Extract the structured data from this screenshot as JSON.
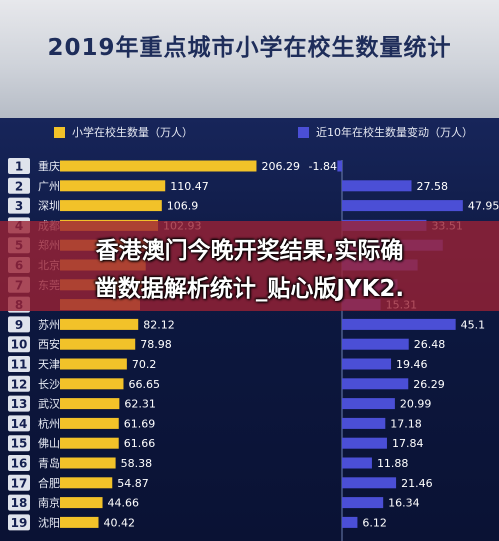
{
  "title": "2019年重点城市小学在校生数量统计",
  "overlay": {
    "line1": "香港澳门今晚开奖结果,实际确",
    "line2": "凿数据解析统计_贴心版JYK2."
  },
  "chart_data": {
    "type": "bar",
    "ranks": [
      1,
      2,
      3,
      4,
      5,
      6,
      7,
      8,
      9,
      10,
      11,
      12,
      13,
      14,
      15,
      16,
      17,
      18,
      19
    ],
    "categories": [
      "重庆",
      "广州",
      "深圳",
      "成都",
      "郑州",
      "北京",
      "东莞",
      "",
      "苏州",
      "西安",
      "天津",
      "长沙",
      "武汉",
      "杭州",
      "佛山",
      "青岛",
      "合肥",
      "南京",
      "沈阳"
    ],
    "series": [
      {
        "name": "小学在校生数量（万人）",
        "color": "#f2c229",
        "values": [
          206.29,
          110.47,
          106.9,
          102.93,
          95,
          90,
          86,
          84,
          82.12,
          78.98,
          70.2,
          66.65,
          62.31,
          61.69,
          61.66,
          58.38,
          54.87,
          44.66,
          40.42
        ],
        "labels": [
          "206.29",
          "110.47",
          "106.9",
          "102.93",
          "",
          "",
          "",
          "",
          "82.12",
          "78.98",
          "70.2",
          "66.65",
          "62.31",
          "61.69",
          "61.66",
          "58.38",
          "54.87",
          "44.66",
          "40.42"
        ]
      },
      {
        "name": "近10年在校生数量变动（万人）",
        "color": "#4b4fd6",
        "values": [
          -1.84,
          27.58,
          47.95,
          33.51,
          40,
          30,
          22,
          15.31,
          45.1,
          26.48,
          19.46,
          26.29,
          20.99,
          17.18,
          17.84,
          11.88,
          21.46,
          16.34,
          6.12
        ],
        "labels": [
          "-1.84",
          "27.58",
          "47.95",
          "33.51",
          "",
          "",
          "",
          "15.31",
          "45.1",
          "26.48",
          "19.46",
          "26.29",
          "20.99",
          "17.18",
          "17.84",
          "11.88",
          "21.46",
          "16.34",
          "6.12"
        ]
      }
    ],
    "ylim": [
      0,
      210
    ],
    "change_lim": [
      0,
      50
    ],
    "legend_position": "top"
  }
}
